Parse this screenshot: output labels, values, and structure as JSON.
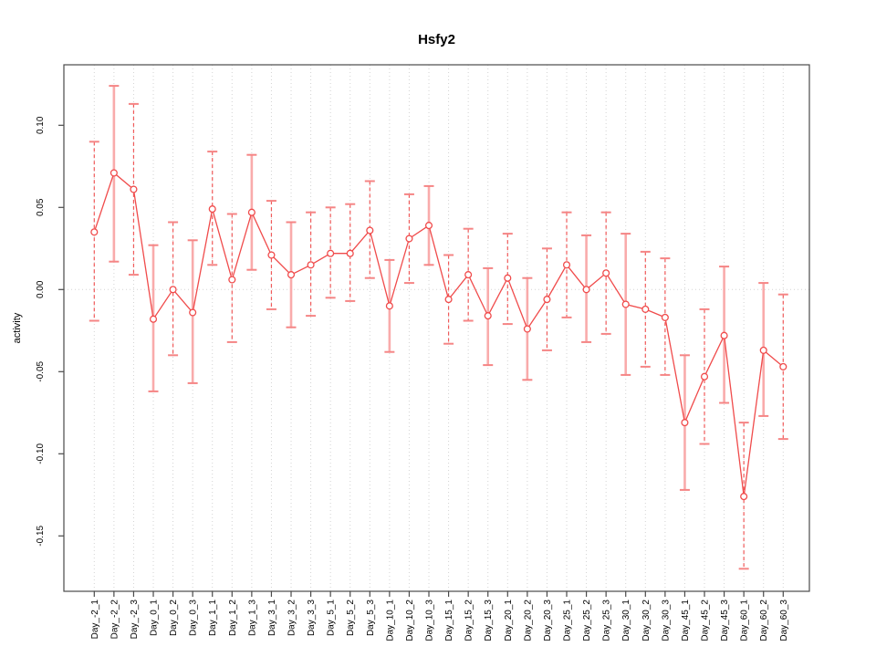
{
  "chart_data": {
    "type": "line",
    "title": "Hsfy2",
    "xlabel": "",
    "ylabel": "activity",
    "legend": "none",
    "marker": "open-circle",
    "x_tick_label_rotation": 90,
    "y_tick_label_rotation": 90,
    "ylim": [
      -0.184,
      0.137
    ],
    "yticks": [
      0.1,
      0.05,
      0.0,
      -0.05,
      -0.1,
      -0.15
    ],
    "ytick_labels": [
      "0.10",
      "0.05",
      "0.00",
      "-0.05",
      "-0.10",
      "-0.15"
    ],
    "grid": {
      "vertical_dotted_per_category": true,
      "horizontal_dotted_at_zero": true
    },
    "categories": [
      "Day_-2_1",
      "Day_-2_2",
      "Day_-2_3",
      "Day_0_1",
      "Day_0_2",
      "Day_0_3",
      "Day_1_1",
      "Day_1_2",
      "Day_1_3",
      "Day_3_1",
      "Day_3_2",
      "Day_3_3",
      "Day_5_1",
      "Day_5_2",
      "Day_5_3",
      "Day_10_1",
      "Day_10_2",
      "Day_10_3",
      "Day_15_1",
      "Day_15_2",
      "Day_15_3",
      "Day_20_1",
      "Day_20_2",
      "Day_20_3",
      "Day_25_1",
      "Day_25_2",
      "Day_25_3",
      "Day_30_1",
      "Day_30_2",
      "Day_30_3",
      "Day_45_1",
      "Day_45_2",
      "Day_45_3",
      "Day_60_1",
      "Day_60_2",
      "Day_60_3"
    ],
    "series": [
      {
        "name": "activity",
        "values": [
          0.035,
          0.071,
          0.061,
          -0.018,
          0.0,
          -0.014,
          0.049,
          0.006,
          0.047,
          0.021,
          0.009,
          0.015,
          0.022,
          0.022,
          0.036,
          -0.01,
          0.031,
          0.039,
          -0.006,
          0.009,
          -0.016,
          0.007,
          -0.024,
          -0.006,
          0.015,
          0.0,
          0.01,
          -0.009,
          -0.012,
          -0.017,
          -0.081,
          -0.053,
          -0.028,
          -0.126,
          -0.037,
          -0.047
        ],
        "error_high": [
          0.09,
          0.124,
          0.113,
          0.027,
          0.041,
          0.03,
          0.084,
          0.046,
          0.082,
          0.054,
          0.041,
          0.047,
          0.05,
          0.052,
          0.066,
          0.018,
          0.058,
          0.063,
          0.021,
          0.037,
          0.013,
          0.034,
          0.007,
          0.025,
          0.047,
          0.033,
          0.047,
          0.034,
          0.023,
          0.019,
          -0.04,
          -0.012,
          0.014,
          -0.081,
          0.004,
          -0.003
        ],
        "error_low": [
          -0.019,
          0.017,
          0.009,
          -0.062,
          -0.04,
          -0.057,
          0.015,
          -0.032,
          0.012,
          -0.012,
          -0.023,
          -0.016,
          -0.005,
          -0.007,
          0.007,
          -0.038,
          0.004,
          0.015,
          -0.033,
          -0.019,
          -0.046,
          -0.021,
          -0.055,
          -0.037,
          -0.017,
          -0.032,
          -0.027,
          -0.052,
          -0.047,
          -0.052,
          -0.122,
          -0.094,
          -0.069,
          -0.17,
          -0.077,
          -0.091
        ],
        "error_bar_styles": [
          "dashed",
          "solid",
          "dashed",
          "solid",
          "dashed",
          "solid",
          "dashed",
          "dashed",
          "solid",
          "dashed",
          "solid",
          "dashed",
          "dashed",
          "dashed",
          "dashed",
          "solid",
          "dashed",
          "solid",
          "dashed",
          "dashed",
          "solid",
          "dashed",
          "solid",
          "dashed",
          "dashed",
          "solid",
          "dashed",
          "solid",
          "dashed",
          "dashed",
          "solid",
          "dashed",
          "solid",
          "dashed",
          "solid",
          "dashed"
        ]
      }
    ],
    "colors": {
      "line": "#F04B4B",
      "marker": "#F04B4B",
      "error_bar_dashed": "#F05A5A",
      "error_bar_solid": "#F9ABAB",
      "error_cap": "#F58585",
      "grid": "#D3D3D3",
      "axis": "#4A4A4A",
      "text": "#000000",
      "background": "#FFFFFF"
    }
  }
}
